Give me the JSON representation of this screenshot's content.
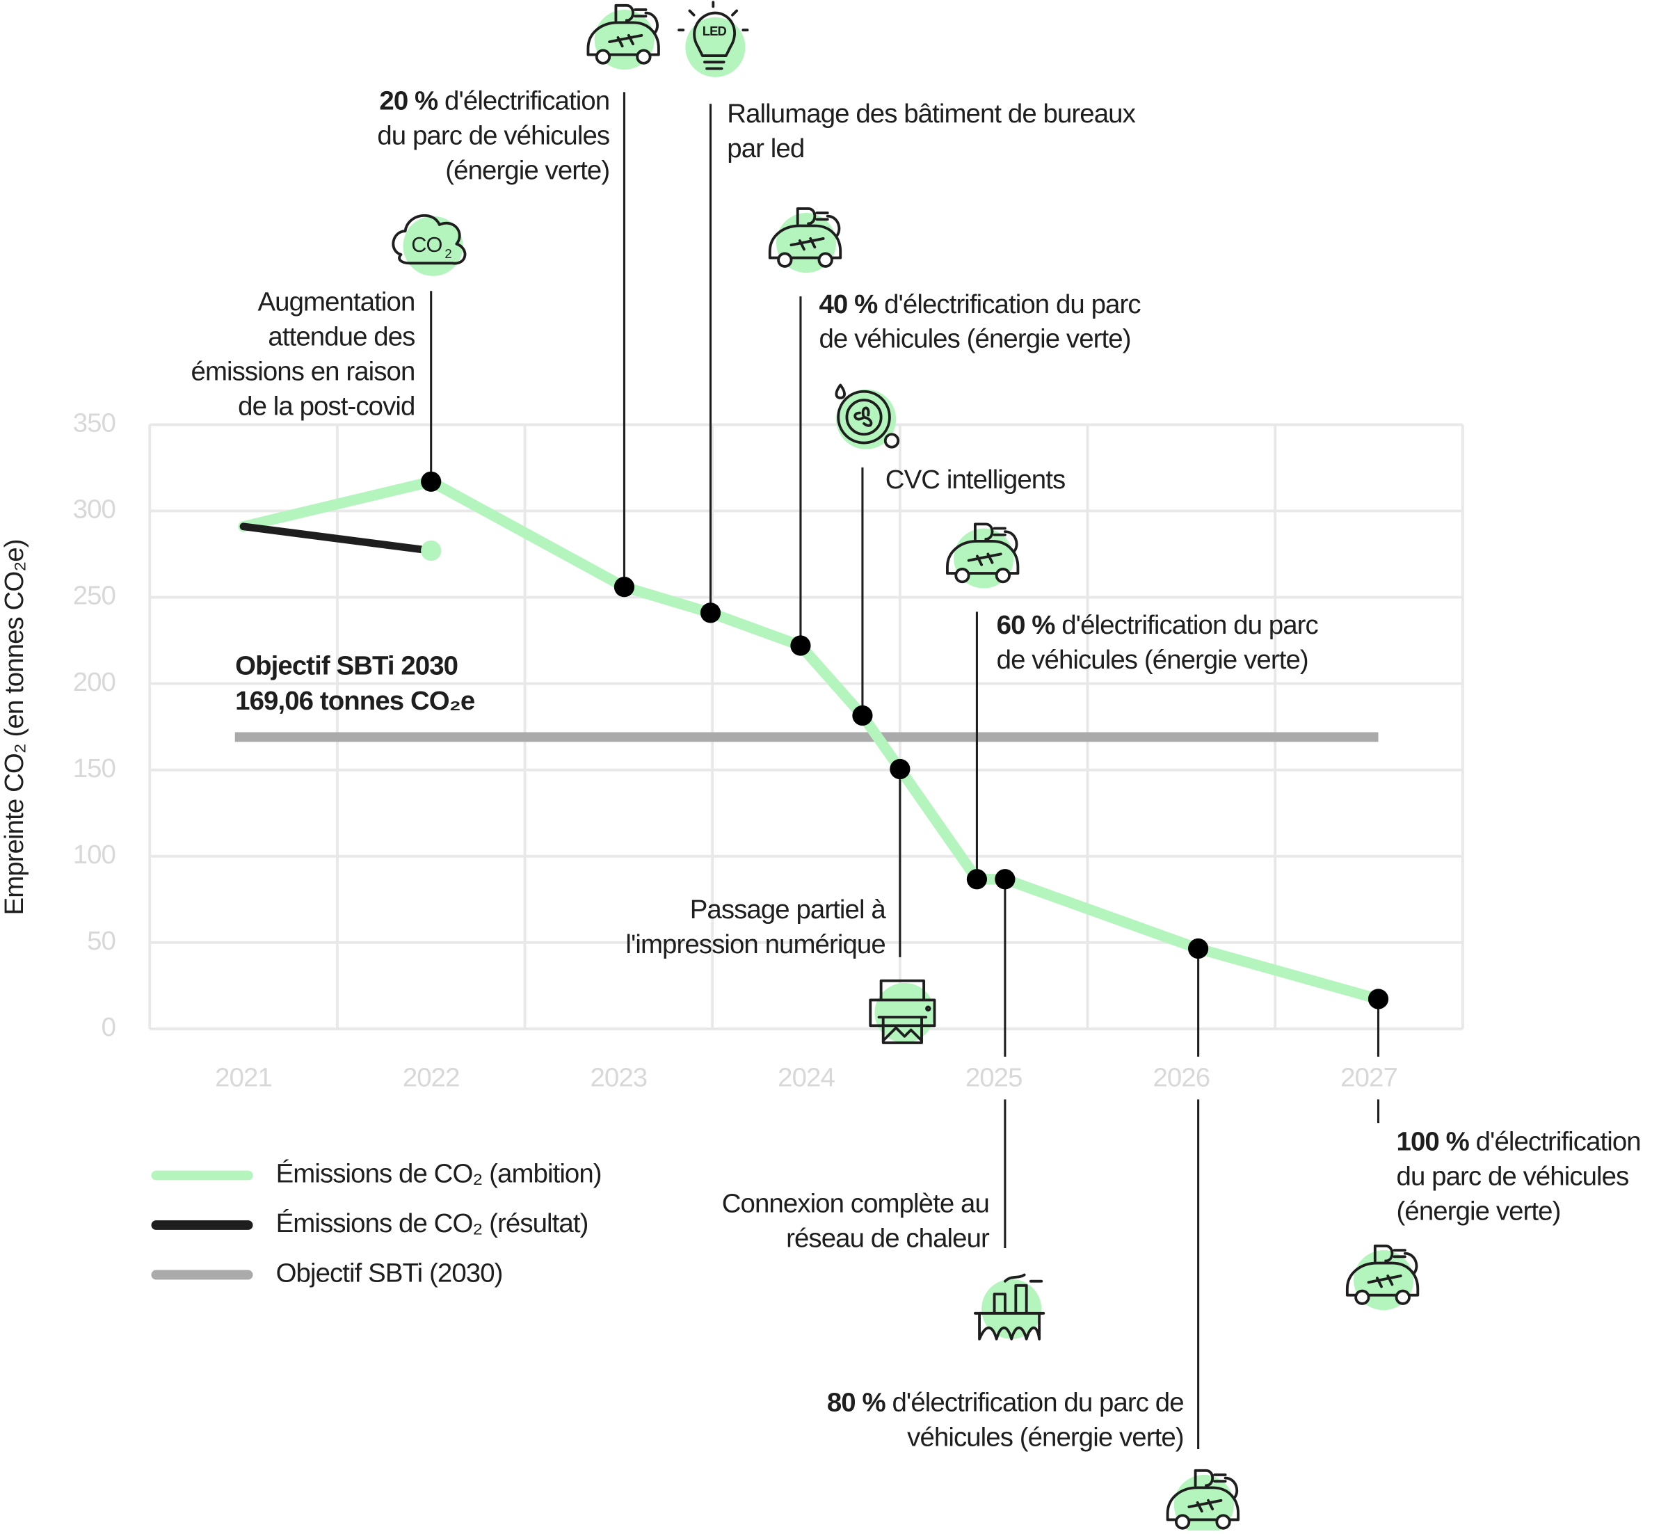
{
  "chart_data": {
    "type": "line",
    "y_label": "Empreinte CO₂ (en tonnes CO₂e)",
    "xlim": [
      2020.5,
      2027.5
    ],
    "xticks": [
      2021,
      2022,
      2023,
      2024,
      2025,
      2026,
      2027
    ],
    "ylim": [
      0,
      350
    ],
    "yticks": [
      0,
      50,
      100,
      150,
      200,
      250,
      300,
      350
    ],
    "grid": true,
    "series": [
      {
        "name": "Émissions de CO₂ (ambition)",
        "color": "#b3f5bd",
        "x": [
          2021,
          2022,
          2023.03,
          2023.49,
          2023.97,
          2024.3,
          2024.5,
          2024.91,
          2025.06,
          2026.09,
          2027.05
        ],
        "values": [
          291,
          317,
          256,
          241,
          222,
          181.5,
          150.5,
          86.7,
          86.7,
          46.5,
          17.3
        ]
      },
      {
        "name": "Émissions de CO₂ (résultat)",
        "color": "#1e1e1e",
        "x": [
          2021,
          2022
        ],
        "values": [
          291,
          277
        ]
      }
    ],
    "target": {
      "name": "Objectif SBTi (2030)",
      "value": 169.06,
      "color": "#aaaaaa",
      "label": [
        "Objectif SBTi 2030",
        "169,06 tonnes CO₂e"
      ]
    },
    "annotations": [
      {
        "lines": [
          "Augmentation",
          "attendue des",
          "émissions en raison",
          "de la post-covid"
        ]
      },
      {
        "bold": "20 %",
        "lines": [
          " d'électrification",
          "du parc de véhicules",
          "(énergie verte)"
        ]
      },
      {
        "lines": [
          "Rallumage des bâtiment de bureaux",
          "par led"
        ]
      },
      {
        "bold": "40 %",
        "lines": [
          " d'électrification du parc",
          "de véhicules (énergie verte)"
        ]
      },
      {
        "lines": [
          "CVC intelligents"
        ]
      },
      {
        "lines": [
          "Passage partiel à",
          "l'impression numérique"
        ]
      },
      {
        "bold": "60 %",
        "lines": [
          " d'électrification du parc",
          "de véhicules (énergie verte)"
        ]
      },
      {
        "lines": [
          "Connexion complète au",
          "réseau de chaleur"
        ]
      },
      {
        "bold": "80 %",
        "lines": [
          " d'électrification du parc de",
          "véhicules (énergie verte)"
        ]
      },
      {
        "bold": "100 %",
        "lines": [
          " d'électrification",
          "du parc de véhicules",
          "(énergie verte)"
        ]
      }
    ]
  }
}
